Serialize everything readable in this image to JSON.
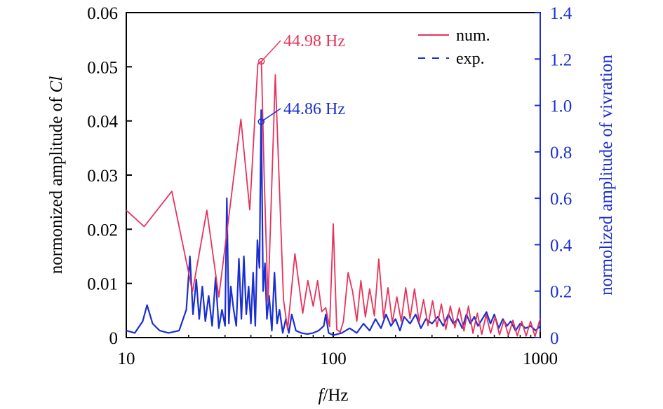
{
  "chart_data": {
    "type": "line",
    "x_scale": "log",
    "xlim": [
      10,
      1000
    ],
    "ylim_left": [
      0,
      0.06
    ],
    "ylim_right": [
      0,
      1.4
    ],
    "x_ticks": [
      "10",
      "100",
      "1000"
    ],
    "y_left_ticks": [
      "0",
      "0.01",
      "0.02",
      "0.03",
      "0.04",
      "0.05",
      "0.06"
    ],
    "y_right_ticks": [
      "0",
      "0.2",
      "0.4",
      "0.6",
      "0.8",
      "1.0",
      "1.2",
      "1.4"
    ],
    "xlabel_italic": "f",
    "xlabel_rest": "/Hz",
    "ylabel_left_text": "normonized amplitude of ",
    "ylabel_left_italic": "Cl",
    "ylabel_right": "normolized amplitude of vivration",
    "legend_position": "top-right",
    "legend": [
      {
        "label": "num.",
        "color": "#e8325a",
        "style": "solid"
      },
      {
        "label": "exp.",
        "color": "#1a2fd1",
        "style": "dashed"
      }
    ],
    "annotations": [
      {
        "text": "44.98 Hz",
        "x": 44.98,
        "y": 0.051,
        "axis": "left",
        "color": "#e8325a"
      },
      {
        "text": "44.86 Hz",
        "x": 44.86,
        "y": 0.93,
        "axis": "right",
        "color": "#1a2fd1"
      }
    ],
    "series": [
      {
        "name": "num.",
        "axis": "left",
        "color": "#e8325a",
        "x": [
          10,
          12.2,
          16.6,
          20.9,
          24.5,
          28.0,
          35.8,
          39.5,
          43.2,
          44.98,
          46.4,
          48.4,
          52.5,
          57.5,
          60.2,
          65.3,
          71.2,
          75.4,
          80.0,
          84.0,
          88.0,
          92.0,
          96.0,
          100.0,
          104.0,
          108.0,
          112.0,
          118.0,
          124.0,
          130.0,
          136.0,
          143.0,
          150.0,
          158.0,
          166.0,
          175.0,
          184.0,
          193.0,
          203.0,
          213.0,
          224.0,
          235.0,
          247.0,
          260.0,
          273.0,
          287.0,
          302.0,
          317.0,
          333.0,
          350.0,
          368.0,
          387.0,
          407.0,
          428.0,
          450.0,
          473.0,
          497.0,
          522.0,
          548.0,
          576.0,
          605.0,
          636.0,
          668.0,
          702.0,
          738.0,
          775.0,
          814.0,
          855.0,
          898.0,
          944.0,
          1000.0
        ],
        "y": [
          0.0235,
          0.0205,
          0.027,
          0.0085,
          0.0235,
          0.0075,
          0.0403,
          0.0236,
          0.0505,
          0.051,
          0.0295,
          0.0065,
          0.0485,
          0.007,
          0.0015,
          0.0155,
          0.0045,
          0.0105,
          0.0058,
          0.0105,
          0.0048,
          0.0055,
          0.002,
          0.021,
          0.0015,
          0.001,
          0.003,
          0.012,
          0.0085,
          0.003,
          0.0105,
          0.0038,
          0.009,
          0.004,
          0.0145,
          0.0036,
          0.0092,
          0.0028,
          0.0075,
          0.003,
          0.0092,
          0.0035,
          0.009,
          0.0028,
          0.007,
          0.0022,
          0.0068,
          0.002,
          0.0062,
          0.0015,
          0.0058,
          0.0018,
          0.0055,
          0.0012,
          0.0058,
          0.0008,
          0.0045,
          0.0006,
          0.0042,
          0.0008,
          0.0038,
          0.0005,
          0.0032,
          0.0004,
          0.0032,
          0.0003,
          0.003,
          0.0003,
          0.003,
          0.0002,
          0.0035
        ]
      },
      {
        "name": "exp.",
        "axis": "right",
        "color": "#1a2fd1",
        "x": [
          10,
          11.0,
          12.0,
          12.6,
          13.4,
          14.5,
          16.0,
          18.0,
          19.5,
          20.3,
          21.0,
          21.8,
          22.5,
          23.3,
          24.1,
          25.0,
          26.0,
          27.0,
          28.0,
          29.0,
          30.0,
          30.6,
          31.3,
          32.0,
          33.0,
          34.0,
          35.0,
          36.0,
          37.0,
          38.0,
          39.0,
          40.0,
          41.0,
          42.0,
          43.0,
          44.0,
          44.86,
          45.8,
          46.8,
          47.8,
          49.0,
          50.5,
          52.0,
          53.5,
          55.0,
          57.0,
          59.0,
          61.0,
          63.0,
          66.0,
          70.0,
          75.0,
          80.0,
          85.0,
          90.0,
          92.0,
          95.0,
          100.0,
          110.0,
          120.0,
          130.0,
          140.0,
          150.0,
          160.0,
          170.0,
          180.0,
          190.0,
          200.0,
          210.0,
          220.0,
          235.0,
          250.0,
          265.0,
          280.0,
          300.0,
          320.0,
          340.0,
          360.0,
          380.0,
          400.0,
          420.0,
          440.0,
          460.0,
          480.0,
          500.0,
          525.0,
          550.0,
          575.0,
          600.0,
          630.0,
          660.0,
          690.0,
          720.0,
          760.0,
          800.0,
          850.0,
          900.0,
          950.0,
          1000.0
        ],
        "y": [
          0.03,
          0.02,
          0.07,
          0.14,
          0.06,
          0.03,
          0.02,
          0.03,
          0.12,
          0.35,
          0.1,
          0.25,
          0.08,
          0.22,
          0.07,
          0.18,
          0.05,
          0.26,
          0.04,
          0.12,
          0.05,
          0.6,
          0.06,
          0.22,
          0.12,
          0.05,
          0.34,
          0.08,
          0.35,
          0.1,
          0.22,
          0.06,
          0.28,
          0.05,
          0.42,
          0.3,
          0.98,
          0.2,
          0.32,
          0.08,
          0.18,
          0.03,
          0.28,
          0.06,
          0.12,
          0.02,
          0.08,
          0.02,
          0.1,
          0.03,
          0.02,
          0.015,
          0.02,
          0.03,
          0.05,
          0.1,
          0.02,
          0.01,
          0.02,
          0.04,
          0.02,
          0.06,
          0.03,
          0.08,
          0.04,
          0.1,
          0.05,
          0.08,
          0.03,
          0.09,
          0.06,
          0.1,
          0.04,
          0.08,
          0.06,
          0.09,
          0.05,
          0.1,
          0.06,
          0.08,
          0.04,
          0.1,
          0.06,
          0.09,
          0.05,
          0.08,
          0.11,
          0.06,
          0.1,
          0.04,
          0.08,
          0.05,
          0.07,
          0.03,
          0.06,
          0.04,
          0.05,
          0.03,
          0.05
        ]
      }
    ]
  }
}
